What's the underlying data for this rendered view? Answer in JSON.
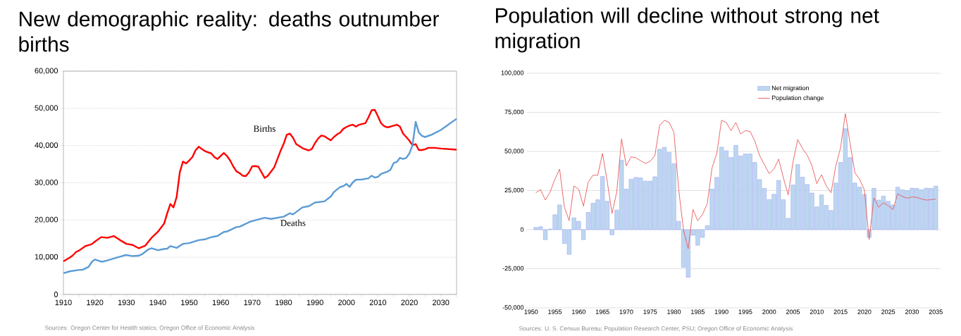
{
  "chart_data": [
    {
      "type": "line",
      "title": "New demographic reality: deaths outnumber births",
      "xlim": [
        1910,
        2035
      ],
      "ylim": [
        0,
        60000
      ],
      "xticks": [
        1910,
        {
          "value": 1915,
          "label": null
        },
        1920,
        {
          "value": 1925,
          "label": null
        },
        1930,
        {
          "value": 1935,
          "label": null
        },
        1940,
        {
          "value": 1945,
          "label": null
        },
        1950,
        {
          "value": 1955,
          "label": null
        },
        1960,
        {
          "value": 1965,
          "label": null
        },
        1970,
        {
          "value": 1975,
          "label": null
        },
        1980,
        {
          "value": 1985,
          "label": null
        },
        1990,
        {
          "value": 1995,
          "label": null
        },
        2000,
        {
          "value": 2005,
          "label": null
        },
        2010,
        {
          "value": 2015,
          "label": null
        },
        2020,
        {
          "value": 2025,
          "label": null
        },
        2030,
        {
          "value": 2035,
          "label": null
        }
      ],
      "yticks": [
        0,
        {
          "value": 10000,
          "label": "10,000"
        },
        {
          "value": 20000,
          "label": "20,000"
        },
        {
          "value": 30000,
          "label": "30,000"
        },
        {
          "value": 40000,
          "label": "40,000"
        },
        {
          "value": 50000,
          "label": "50,000"
        },
        {
          "value": 60000,
          "label": "60,000"
        }
      ],
      "grid": "y",
      "series": [
        {
          "name": "Births",
          "color": "#ff0000",
          "x": [
            1910,
            1912,
            1913,
            1914,
            1915,
            1917,
            1919,
            1920,
            1922,
            1924,
            1926,
            1928,
            1930,
            1932,
            1934,
            1936,
            1938,
            1940,
            1942,
            1943,
            1944,
            1945,
            1946,
            1947,
            1948,
            1949,
            1950,
            1951,
            1952,
            1953,
            1954,
            1955,
            1957,
            1958,
            1959,
            1960,
            1961,
            1962,
            1963,
            1964,
            1965,
            1966,
            1967,
            1968,
            1969,
            1970,
            1971,
            1972,
            1974,
            1975,
            1977,
            1979,
            1980,
            1981,
            1982,
            1983,
            1984,
            1986,
            1988,
            1989,
            1990,
            1991,
            1992,
            1993,
            1995,
            1996,
            1997,
            1998,
            1999,
            2000,
            2001,
            2002,
            2003,
            2004,
            2006,
            2007,
            2008,
            2009,
            2010,
            2011,
            2012,
            2013,
            2014,
            2016,
            2017,
            2018,
            2019,
            2020,
            2021,
            2022,
            2023,
            2024,
            2025,
            2026,
            2028,
            2030,
            2035
          ],
          "values": [
            8900,
            9900,
            10500,
            11400,
            11800,
            13000,
            13500,
            14200,
            15400,
            15200,
            15700,
            14600,
            13600,
            13300,
            12400,
            13100,
            15200,
            16800,
            19000,
            21800,
            24300,
            23400,
            26200,
            32800,
            35700,
            35200,
            36000,
            36900,
            38700,
            39700,
            39100,
            38500,
            37900,
            36900,
            36400,
            37200,
            38000,
            37200,
            36000,
            34400,
            33100,
            32600,
            31900,
            31800,
            32800,
            34400,
            34500,
            34300,
            31300,
            31900,
            34100,
            38500,
            40400,
            42900,
            43200,
            42100,
            40400,
            39300,
            38700,
            39100,
            40700,
            41900,
            42700,
            42500,
            41400,
            42300,
            43000,
            43500,
            44500,
            45000,
            45400,
            45600,
            45100,
            45600,
            46000,
            47600,
            49500,
            49600,
            47900,
            46000,
            45200,
            44900,
            45100,
            45600,
            45100,
            43200,
            42300,
            41300,
            40100,
            40400,
            38800,
            38800,
            39000,
            39400,
            39400,
            39200,
            38900
          ]
        },
        {
          "name": "Deaths",
          "color": "#5b9bd5",
          "x": [
            1910,
            1912,
            1915,
            1916,
            1918,
            1919,
            1920,
            1922,
            1923,
            1925,
            1927,
            1929,
            1930,
            1932,
            1934,
            1935,
            1937,
            1938,
            1940,
            1942,
            1943,
            1944,
            1946,
            1948,
            1950,
            1953,
            1955,
            1957,
            1959,
            1961,
            1962,
            1963,
            1965,
            1966,
            1968,
            1969,
            1970,
            1974,
            1976,
            1980,
            1982,
            1983,
            1986,
            1988,
            1990,
            1993,
            1995,
            1996,
            1998,
            1999,
            2000,
            2001,
            2002,
            2003,
            2005,
            2007,
            2008,
            2009,
            2010,
            2011,
            2013,
            2014,
            2015,
            2016,
            2017,
            2018,
            2019,
            2020,
            2021,
            2022,
            2023,
            2024,
            2025,
            2027,
            2030,
            2035
          ],
          "values": [
            5700,
            6200,
            6600,
            6600,
            7400,
            8700,
            9400,
            8800,
            8900,
            9400,
            9900,
            10400,
            10600,
            10300,
            10400,
            10800,
            12100,
            12400,
            11900,
            12200,
            12300,
            13000,
            12500,
            13600,
            13800,
            14600,
            14800,
            15400,
            15700,
            16800,
            16900,
            17300,
            18100,
            18200,
            19000,
            19400,
            19700,
            20600,
            20300,
            20900,
            21800,
            21500,
            23400,
            23700,
            24700,
            25000,
            26300,
            27500,
            28900,
            29100,
            29700,
            28900,
            30100,
            30800,
            30900,
            31200,
            31900,
            31400,
            31600,
            32400,
            33000,
            33500,
            35300,
            35600,
            36700,
            36400,
            36700,
            37900,
            40100,
            46400,
            43500,
            42600,
            42300,
            42900,
            44200,
            47200
          ]
        }
      ],
      "annotations": [
        "Sources: Oregon Center for Health statics; Oregon Office of Economic Analysis"
      ]
    },
    {
      "type": "bar",
      "title": "Population will decline without strong net migration",
      "xlim": [
        1949,
        2036
      ],
      "ylim": [
        -50000,
        100000
      ],
      "xticks": [
        1950,
        1955,
        1960,
        1965,
        1970,
        1975,
        1980,
        1985,
        1990,
        1995,
        2000,
        2005,
        2010,
        2015,
        2020,
        2025,
        2030,
        2035
      ],
      "yticks": [
        {
          "value": -50000,
          "label": "-50,000"
        },
        {
          "value": -25000,
          "label": "-25,000"
        },
        0,
        {
          "value": 25000,
          "label": "25,000"
        },
        {
          "value": 50000,
          "label": "50,000"
        },
        {
          "value": 75000,
          "label": "75,000"
        },
        {
          "value": 100000,
          "label": "100,000"
        }
      ],
      "grid": "y",
      "legend": "top",
      "x": [
        1951,
        1952,
        1953,
        1954,
        1955,
        1956,
        1957,
        1958,
        1959,
        1960,
        1961,
        1962,
        1963,
        1964,
        1965,
        1966,
        1967,
        1968,
        1969,
        1970,
        1971,
        1972,
        1973,
        1974,
        1975,
        1976,
        1977,
        1978,
        1979,
        1980,
        1981,
        1982,
        1983,
        1984,
        1985,
        1986,
        1987,
        1988,
        1989,
        1990,
        1991,
        1992,
        1993,
        1994,
        1995,
        1996,
        1997,
        1998,
        1999,
        2000,
        2001,
        2002,
        2003,
        2004,
        2005,
        2006,
        2007,
        2008,
        2009,
        2010,
        2011,
        2012,
        2013,
        2014,
        2015,
        2016,
        2017,
        2018,
        2019,
        2020,
        2021,
        2022,
        2023,
        2024,
        2025,
        2026,
        2027,
        2028,
        2029,
        2030,
        2031,
        2032,
        2033,
        2034,
        2035
      ],
      "series": [
        {
          "name": "Net migration",
          "type": "bar",
          "color": "#bdd7ee",
          "values": [
            1400,
            1900,
            -6400,
            400,
            9500,
            15800,
            -8900,
            -15800,
            7500,
            5300,
            -6400,
            11000,
            16900,
            19100,
            34000,
            18100,
            -3300,
            12500,
            44400,
            25900,
            32200,
            33400,
            33100,
            31000,
            31000,
            33800,
            51400,
            52600,
            49400,
            42100,
            5300,
            -24100,
            -30500,
            -3600,
            -10000,
            -5000,
            2600,
            25900,
            33400,
            52700,
            50400,
            46100,
            53900,
            47100,
            48400,
            48400,
            43000,
            32000,
            26400,
            19200,
            22600,
            31500,
            19100,
            7200,
            28500,
            41600,
            33500,
            28900,
            23400,
            14500,
            22200,
            15500,
            12300,
            29800,
            43000,
            64500,
            46100,
            29800,
            27200,
            22500,
            -5000,
            26400,
            18900,
            21400,
            18100,
            15800,
            27100,
            25500,
            24900,
            26500,
            26400,
            25500,
            26500,
            26400,
            27800
          ]
        },
        {
          "name": "Population change",
          "type": "line",
          "color": "#e8595a",
          "values": [
            23600,
            25500,
            18900,
            24100,
            32200,
            38700,
            14300,
            5700,
            27900,
            25800,
            15000,
            30400,
            34800,
            34800,
            48700,
            30800,
            10300,
            24100,
            58000,
            40800,
            46600,
            45900,
            44100,
            42300,
            43700,
            47300,
            66600,
            69900,
            68500,
            62300,
            25800,
            0,
            -12200,
            12900,
            5700,
            9700,
            16500,
            39400,
            48700,
            69900,
            68500,
            63300,
            68500,
            61200,
            63300,
            62800,
            56600,
            47300,
            41600,
            35800,
            38700,
            45100,
            33000,
            22200,
            43000,
            57600,
            51900,
            47600,
            40800,
            29400,
            35100,
            27900,
            23600,
            40800,
            52300,
            74200,
            55200,
            36300,
            32200,
            25400,
            -6400,
            20300,
            14300,
            17200,
            15300,
            12900,
            22900,
            21200,
            20100,
            20900,
            20600,
            19600,
            18900,
            19100,
            19600
          ]
        }
      ],
      "annotations": [
        "Sources: U. S. Census Bureau; Population Research Center, PSU; Oregon Office of Economic Analysis"
      ]
    }
  ]
}
